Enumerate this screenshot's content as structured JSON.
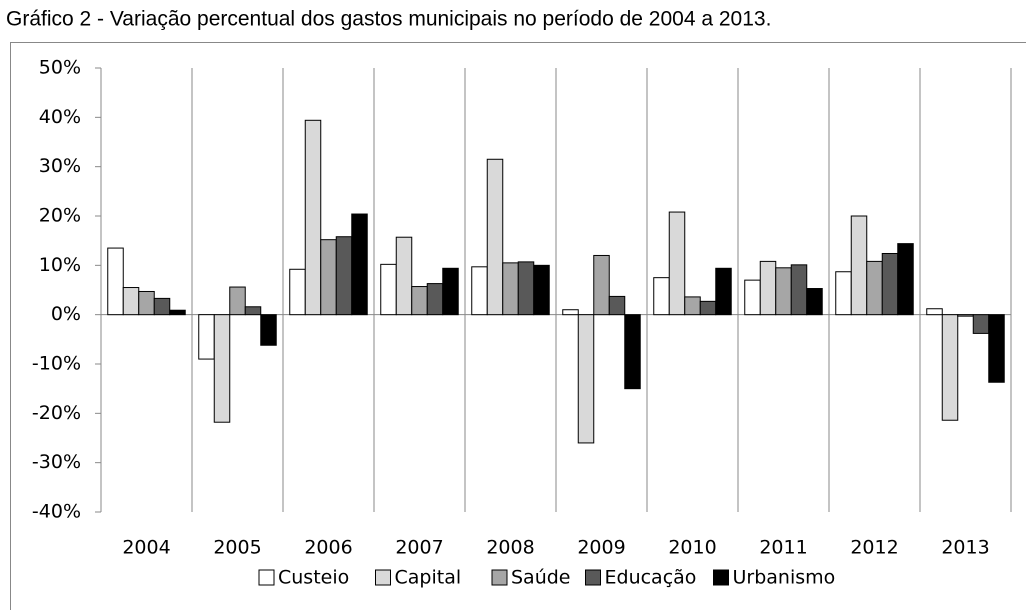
{
  "chart_data": {
    "type": "bar",
    "title": "Gráfico 2 - Variação percentual dos gastos municipais no período de 2004 a 2013.",
    "categories": [
      "2004",
      "2005",
      "2006",
      "2007",
      "2008",
      "2009",
      "2010",
      "2011",
      "2012",
      "2013"
    ],
    "series": [
      {
        "name": "Custeio",
        "color": "#ffffff",
        "values": [
          13.5,
          -9,
          9.2,
          10.2,
          9.7,
          1,
          7.5,
          7,
          8.7,
          1.2
        ]
      },
      {
        "name": "Capital",
        "color": "#d9d9d9",
        "values": [
          5.5,
          -21.8,
          39.4,
          15.7,
          31.5,
          -26,
          20.8,
          10.8,
          20,
          -21.4
        ]
      },
      {
        "name": "Saúde",
        "color": "#a6a6a6",
        "values": [
          4.7,
          5.6,
          15.2,
          5.7,
          10.5,
          12,
          3.6,
          9.5,
          10.8,
          -0.3
        ]
      },
      {
        "name": "Educação",
        "color": "#595959",
        "values": [
          3.3,
          1.6,
          15.8,
          6.3,
          10.7,
          3.7,
          2.7,
          10.1,
          12.4,
          -3.8
        ]
      },
      {
        "name": "Urbanismo",
        "color": "#000000",
        "values": [
          0.9,
          -6.2,
          20.4,
          9.4,
          10,
          -15,
          9.4,
          5.3,
          14.4,
          -13.7
        ]
      }
    ],
    "ylim": [
      -40,
      50
    ],
    "yticks": [
      {
        "value": -40,
        "label": "-40%"
      },
      {
        "value": -30,
        "label": "-30%"
      },
      {
        "value": -20,
        "label": "-20%"
      },
      {
        "value": -10,
        "label": "-10%"
      },
      {
        "value": 0,
        "label": "0%"
      },
      {
        "value": 10,
        "label": "10%"
      },
      {
        "value": 20,
        "label": "20%"
      },
      {
        "value": 30,
        "label": "30%"
      },
      {
        "value": 40,
        "label": "40%"
      },
      {
        "value": 50,
        "label": "50%"
      }
    ],
    "legend": "bottom"
  }
}
